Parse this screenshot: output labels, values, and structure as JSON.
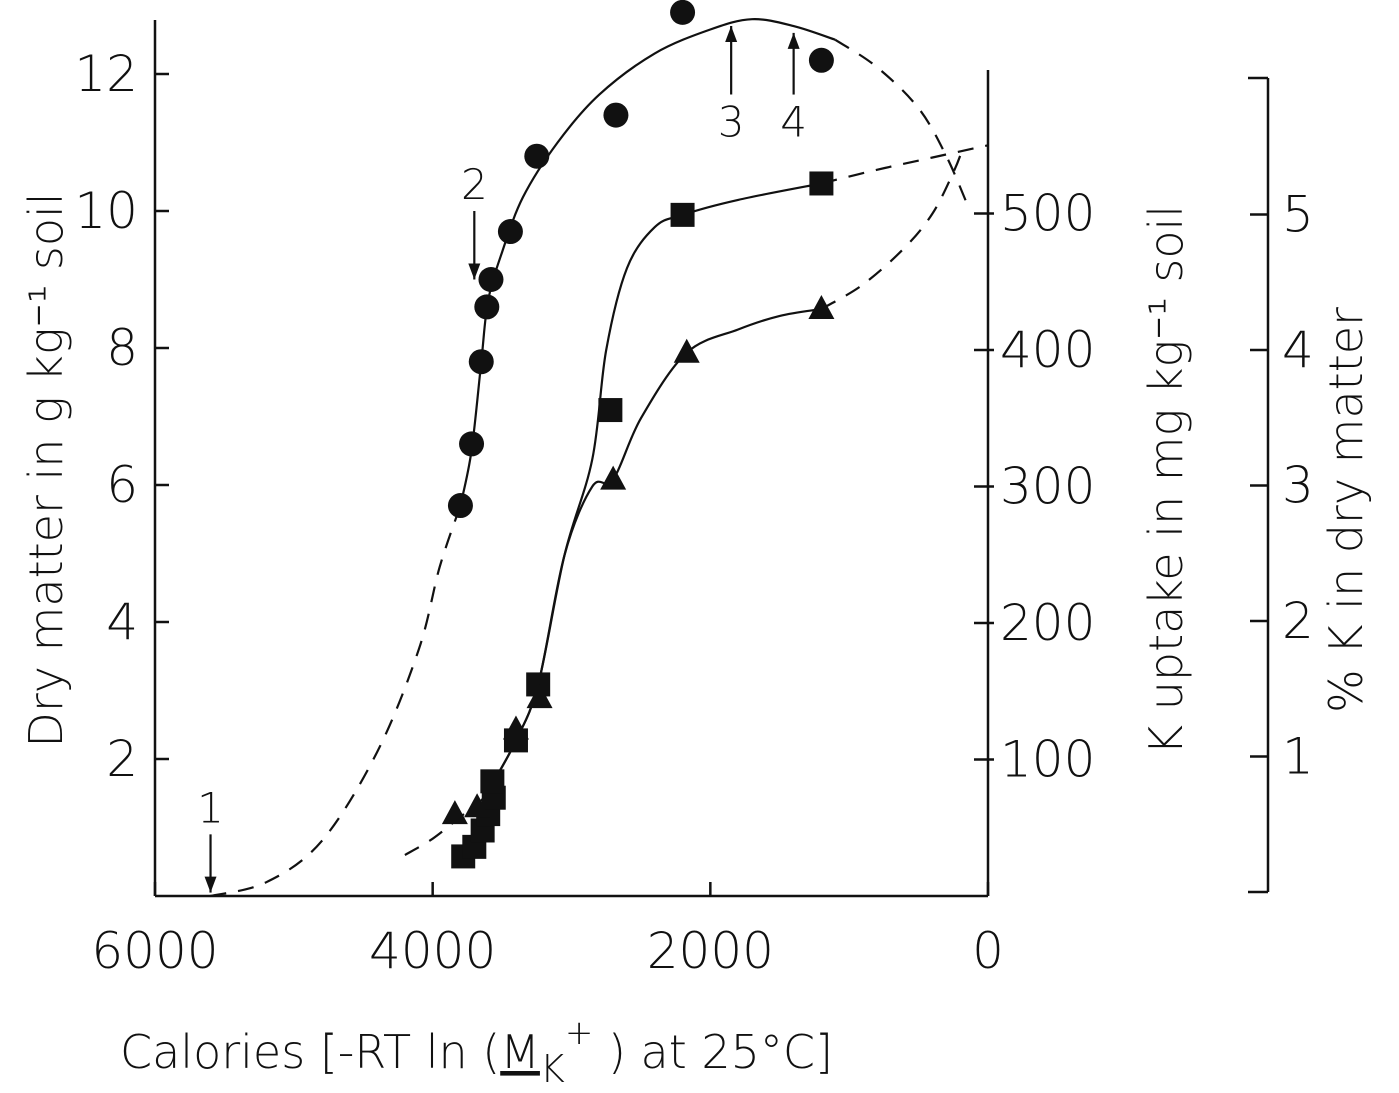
{
  "chart_data": {
    "type": "scatter",
    "x_axis": {
      "label": "Calories [-RT ln (M K+ ) at 25°C]",
      "label_parts": {
        "prefix": "Calories [-RT ",
        "ln": "ln",
        "open": " (",
        "m": "M",
        "k": "K",
        "sup": "+",
        "suffix": " ) at 25°C]"
      },
      "range": [
        6000,
        0
      ],
      "ticks": [
        {
          "value": 6000,
          "label": "6000"
        },
        {
          "value": 4000,
          "label": "4000"
        },
        {
          "value": 2000,
          "label": "2000"
        },
        {
          "value": 0,
          "label": "0"
        }
      ]
    },
    "y_axis_left": {
      "label": "Dry matter in g kg⁻¹ soil",
      "range": [
        0,
        12.5
      ],
      "ticks": [
        {
          "value": 2,
          "label": "2"
        },
        {
          "value": 4,
          "label": "4"
        },
        {
          "value": 6,
          "label": "6"
        },
        {
          "value": 8,
          "label": "8"
        },
        {
          "value": 10,
          "label": "10"
        },
        {
          "value": 12,
          "label": "12"
        }
      ]
    },
    "y_axis_right1": {
      "label": "K uptake in mg kg⁻¹ soil",
      "range": [
        0,
        600
      ],
      "ticks": [
        {
          "value": 100,
          "label": "100"
        },
        {
          "value": 200,
          "label": "200"
        },
        {
          "value": 300,
          "label": "300"
        },
        {
          "value": 400,
          "label": "400"
        },
        {
          "value": 500,
          "label": "500"
        }
      ]
    },
    "y_axis_right2": {
      "label": "% K in dry matter",
      "range": [
        0,
        6
      ],
      "ticks": [
        {
          "value": 1,
          "label": "1"
        },
        {
          "value": 2,
          "label": "2"
        },
        {
          "value": 3,
          "label": "3"
        },
        {
          "value": 4,
          "label": "4"
        },
        {
          "value": 5,
          "label": "5"
        }
      ]
    },
    "series": [
      {
        "marker": "circle",
        "axis": "left",
        "points": [
          {
            "x": 3800,
            "y": 5.7
          },
          {
            "x": 3720,
            "y": 6.6
          },
          {
            "x": 3650,
            "y": 7.8
          },
          {
            "x": 3610,
            "y": 8.6
          },
          {
            "x": 3580,
            "y": 9.0
          },
          {
            "x": 3440,
            "y": 9.7
          },
          {
            "x": 3250,
            "y": 10.8
          },
          {
            "x": 2680,
            "y": 11.4
          },
          {
            "x": 2200,
            "y": 12.9
          },
          {
            "x": 1200,
            "y": 12.2
          }
        ],
        "fit_solid": [
          [
            3800,
            5.7
          ],
          [
            3720,
            6.5
          ],
          [
            3650,
            7.8
          ],
          [
            3600,
            8.7
          ],
          [
            3500,
            9.4
          ],
          [
            3350,
            10.2
          ],
          [
            3100,
            11.0
          ],
          [
            2800,
            11.7
          ],
          [
            2400,
            12.3
          ],
          [
            2000,
            12.65
          ],
          [
            1700,
            12.8
          ],
          [
            1400,
            12.7
          ],
          [
            1100,
            12.5
          ]
        ],
        "fit_dashed": [
          [
            5600,
            0
          ],
          [
            5200,
            0.2
          ],
          [
            4800,
            0.8
          ],
          [
            4400,
            2.1
          ],
          [
            4100,
            3.6
          ],
          [
            3950,
            4.8
          ],
          [
            3800,
            5.7
          ]
        ],
        "fit_dashed_end": [
          [
            1100,
            12.5
          ],
          [
            800,
            12.1
          ],
          [
            500,
            11.5
          ],
          [
            300,
            10.8
          ],
          [
            150,
            10.1
          ]
        ]
      },
      {
        "marker": "square",
        "axis": "right1",
        "points": [
          {
            "x": 3780,
            "y": 29
          },
          {
            "x": 3700,
            "y": 36
          },
          {
            "x": 3640,
            "y": 48
          },
          {
            "x": 3600,
            "y": 60
          },
          {
            "x": 3560,
            "y": 72
          },
          {
            "x": 3570,
            "y": 84
          },
          {
            "x": 3400,
            "y": 114
          },
          {
            "x": 3240,
            "y": 155
          },
          {
            "x": 2720,
            "y": 356
          },
          {
            "x": 2200,
            "y": 499
          },
          {
            "x": 1200,
            "y": 522
          }
        ],
        "fit_solid": [
          [
            3560,
            84
          ],
          [
            3400,
            114
          ],
          [
            3240,
            155
          ],
          [
            3050,
            250
          ],
          [
            2850,
            320
          ],
          [
            2750,
            400
          ],
          [
            2600,
            460
          ],
          [
            2400,
            490
          ],
          [
            2200,
            499
          ],
          [
            1800,
            510
          ],
          [
            1200,
            522
          ]
        ],
        "fit_dashed": [
          [
            1200,
            522
          ],
          [
            800,
            532
          ],
          [
            400,
            541
          ],
          [
            0,
            550
          ]
        ]
      },
      {
        "marker": "triangle",
        "axis": "right1",
        "points": [
          {
            "x": 3840,
            "y": 60
          },
          {
            "x": 3680,
            "y": 65
          },
          {
            "x": 3400,
            "y": 122
          },
          {
            "x": 3230,
            "y": 145
          },
          {
            "x": 2700,
            "y": 305
          },
          {
            "x": 2170,
            "y": 398
          },
          {
            "x": 1200,
            "y": 430
          }
        ],
        "fit_solid": [
          [
            3560,
            84
          ],
          [
            3400,
            114
          ],
          [
            3240,
            155
          ],
          [
            3050,
            250
          ],
          [
            2850,
            300
          ],
          [
            2700,
            305
          ],
          [
            2500,
            350
          ],
          [
            2170,
            398
          ],
          [
            1800,
            415
          ],
          [
            1500,
            425
          ],
          [
            1200,
            430
          ]
        ],
        "fit_dashed": [
          [
            1200,
            430
          ],
          [
            900,
            448
          ],
          [
            600,
            475
          ],
          [
            400,
            500
          ],
          [
            250,
            530
          ],
          [
            180,
            548
          ]
        ],
        "fit_dashed_start": [
          [
            4200,
            30
          ],
          [
            4000,
            42
          ],
          [
            3800,
            58
          ],
          [
            3650,
            70
          ],
          [
            3560,
            84
          ]
        ]
      }
    ],
    "annotations": [
      {
        "label": "1",
        "x": 5600,
        "y_start": 0.9,
        "y_end": 0.05,
        "side": "above"
      },
      {
        "label": "2",
        "x": 3700,
        "y_start": 10.0,
        "y_end": 9.0,
        "side": "above"
      },
      {
        "label": "3",
        "x": 1850,
        "y_start": 11.7,
        "y_end": 12.7,
        "side": "below"
      },
      {
        "label": "4",
        "x": 1400,
        "y_start": 11.7,
        "y_end": 12.6,
        "side": "below"
      }
    ],
    "grid": false
  }
}
